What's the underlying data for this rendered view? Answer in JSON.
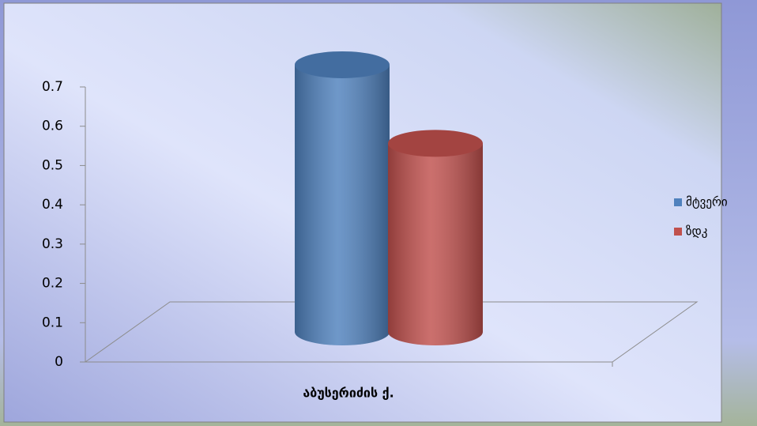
{
  "chart_data": {
    "type": "bar",
    "categories": [
      "აბუსერიძის ქ."
    ],
    "series": [
      {
        "name": "მტვერი",
        "color": "#4f81bd",
        "values": [
          0.68
        ]
      },
      {
        "name": "ზდკ",
        "color": "#c0504d",
        "values": [
          0.48
        ]
      }
    ],
    "ylim": [
      0,
      0.7
    ],
    "yticks": [
      0,
      0.1,
      0.2,
      0.3,
      0.4,
      0.5,
      0.6,
      0.7
    ],
    "legend": "right"
  }
}
